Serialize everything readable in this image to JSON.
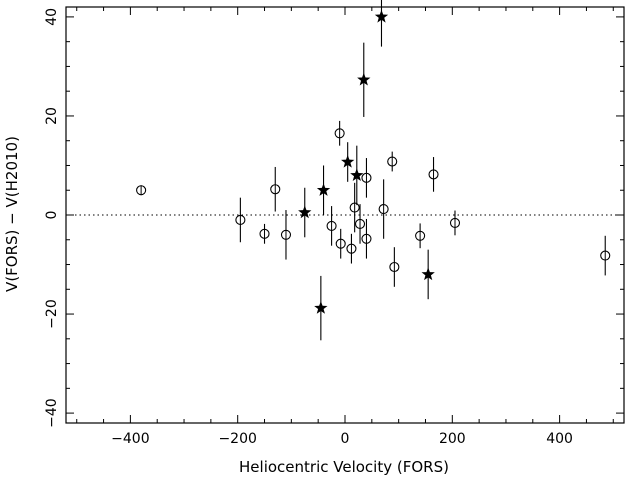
{
  "chart_data": {
    "type": "scatter",
    "title": "",
    "xlabel": "Heliocentric Velocity (FORS)",
    "ylabel": "V(FORS) − V(H2010)",
    "xlim": [
      -520,
      520
    ],
    "ylim": [
      -42,
      42
    ],
    "x_ticks_major": [
      -400,
      -200,
      0,
      200,
      400
    ],
    "x_ticks_labels": [
      "−400",
      "−200",
      "0",
      "200",
      "400"
    ],
    "y_ticks_major": [
      -40,
      -20,
      0,
      20,
      40
    ],
    "y_ticks_labels": [
      "−40",
      "−20",
      "0",
      "20",
      "40"
    ],
    "reference_line_y": 0,
    "grid": false,
    "series": [
      {
        "marker": "open-circle",
        "points": [
          {
            "x": -380,
            "y": 5.0,
            "err": 1.0
          },
          {
            "x": -195,
            "y": -1.0,
            "err": 4.5
          },
          {
            "x": -150,
            "y": -3.8,
            "err": 2.0
          },
          {
            "x": -130,
            "y": 5.2,
            "err": 4.5
          },
          {
            "x": -110,
            "y": -4.0,
            "err": 5.0
          },
          {
            "x": -25,
            "y": -2.2,
            "err": 4.0
          },
          {
            "x": -10,
            "y": 16.5,
            "err": 2.5
          },
          {
            "x": -8,
            "y": -5.8,
            "err": 3.0
          },
          {
            "x": 12,
            "y": -6.8,
            "err": 3.0
          },
          {
            "x": 18,
            "y": 1.5,
            "err": 5.0
          },
          {
            "x": 28,
            "y": -1.8,
            "err": 4.0
          },
          {
            "x": 40,
            "y": 7.5,
            "err": 4.0
          },
          {
            "x": 40,
            "y": -4.8,
            "err": 4.0
          },
          {
            "x": 72,
            "y": 1.2,
            "err": 6.0
          },
          {
            "x": 88,
            "y": 10.8,
            "err": 2.0
          },
          {
            "x": 92,
            "y": -10.5,
            "err": 4.0
          },
          {
            "x": 140,
            "y": -4.2,
            "err": 2.5
          },
          {
            "x": 165,
            "y": 8.2,
            "err": 3.5
          },
          {
            "x": 205,
            "y": -1.6,
            "err": 2.5
          },
          {
            "x": 485,
            "y": -8.2,
            "err": 4.0
          }
        ]
      },
      {
        "marker": "filled-star",
        "points": [
          {
            "x": -75,
            "y": 0.5,
            "err": 5.0
          },
          {
            "x": -45,
            "y": -18.8,
            "err": 6.5
          },
          {
            "x": -40,
            "y": 5.0,
            "err": 5.0
          },
          {
            "x": 5,
            "y": 10.7,
            "err": 4.0
          },
          {
            "x": 22,
            "y": 8.0,
            "err": 6.0
          },
          {
            "x": 35,
            "y": 27.3,
            "err": 7.5
          },
          {
            "x": 68,
            "y": 40.0,
            "err": 6.0
          },
          {
            "x": 155,
            "y": -12.0,
            "err": 5.0
          }
        ]
      }
    ]
  }
}
